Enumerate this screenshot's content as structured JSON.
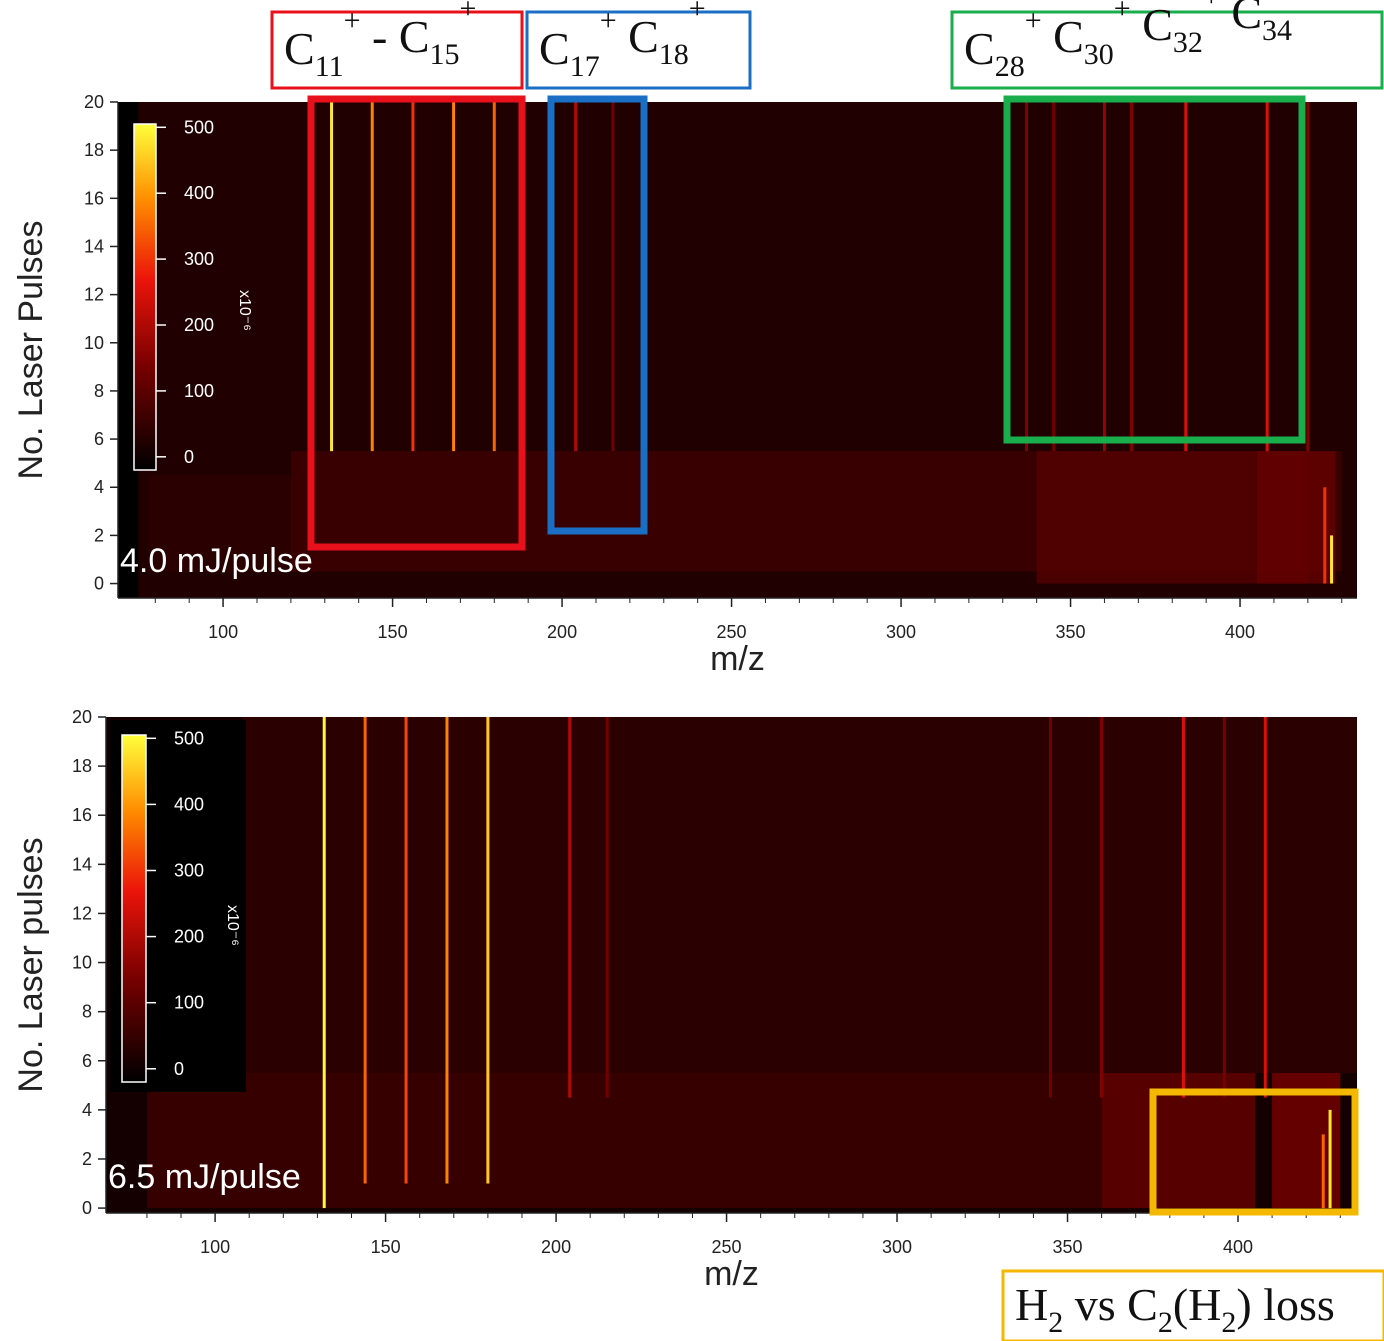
{
  "chart_data": [
    {
      "type": "heatmap",
      "ylabel": "No. Laser Pulses",
      "xlabel": "m/z",
      "annotation_text": "4.0 mJ/pulse",
      "xlim": [
        69,
        434.5
      ],
      "ylim": [
        -0.6,
        20
      ],
      "xticks": [
        100,
        150,
        200,
        250,
        300,
        350,
        400
      ],
      "xminorticks": [
        80,
        90,
        110,
        120,
        130,
        140,
        160,
        170,
        180,
        190,
        210,
        220,
        230,
        240,
        260,
        270,
        280,
        290,
        310,
        320,
        330,
        340,
        360,
        370,
        380,
        390,
        410,
        420,
        430
      ],
      "yticks": [
        0,
        2,
        4,
        6,
        8,
        10,
        12,
        14,
        16,
        18,
        20
      ],
      "colorbar_label": "x10⁻⁶",
      "colorbar_lim": [
        -20,
        505
      ],
      "colorbar_ticks": [
        0,
        100,
        200,
        300,
        400,
        500
      ],
      "regions": {
        "mz_from": [
          75,
          120,
          340,
          405,
          78
        ],
        "mz_to": [
          434.5,
          430,
          420,
          428,
          120
        ],
        "from": [
          -0.6,
          0.5,
          0,
          0,
          0.5
        ],
        "to": [
          20,
          5.5,
          5.5,
          5.5,
          4.5
        ],
        "values": [
          30,
          60,
          90,
          110,
          40
        ]
      },
      "peaks": {
        "mz": [
          132,
          144,
          156,
          168,
          180,
          204,
          215,
          337,
          345,
          360,
          368,
          384,
          408,
          420,
          425,
          427
        ],
        "from": [
          5.5,
          5.5,
          5.5,
          5.5,
          5.5,
          5.5,
          5.5,
          5.5,
          5.5,
          5.5,
          5.5,
          5.5,
          5.5,
          5.5,
          0,
          0
        ],
        "to": [
          20,
          20,
          20,
          20,
          20,
          20,
          20,
          20,
          20,
          20,
          20,
          20,
          20,
          20,
          4,
          2
        ],
        "values": [
          480,
          380,
          300,
          380,
          350,
          200,
          130,
          150,
          130,
          170,
          150,
          250,
          250,
          150,
          300,
          480
        ]
      },
      "annotations": [
        {
          "color": "#e8101a",
          "parts": [
            {
              "text": "C"
            },
            {
              "sub": "11"
            },
            {
              "sup": "+"
            },
            {
              "text": " - C"
            },
            {
              "sub": "15"
            },
            {
              "sup": "+"
            }
          ]
        },
        {
          "color": "#1a6fc4",
          "parts": [
            {
              "text": "C"
            },
            {
              "sub": "17"
            },
            {
              "sup": "+"
            },
            {
              "text": " C"
            },
            {
              "sub": "18"
            },
            {
              "sup": "+"
            }
          ]
        },
        {
          "color": "#1aad4b",
          "parts": [
            {
              "text": "C"
            },
            {
              "sub": "28"
            },
            {
              "sup": "+"
            },
            {
              "text": " C"
            },
            {
              "sub": "30"
            },
            {
              "sup": "+"
            },
            {
              "text": " C"
            },
            {
              "sub": "32"
            },
            {
              "sup": "+"
            },
            {
              "text": " C"
            },
            {
              "sub": "34"
            },
            {
              "sup": "+"
            }
          ]
        }
      ]
    },
    {
      "type": "heatmap",
      "ylabel": "No. Laser pulses",
      "xlabel": "m/z",
      "annotation_text": "6.5 mJ/pulse",
      "xlim": [
        68,
        434.9
      ],
      "ylim": [
        -0.2,
        20
      ],
      "xticks": [
        100,
        150,
        200,
        250,
        300,
        350,
        400
      ],
      "xminorticks": [
        80,
        90,
        110,
        120,
        130,
        140,
        160,
        170,
        180,
        190,
        210,
        220,
        230,
        240,
        260,
        270,
        280,
        290,
        310,
        320,
        330,
        340,
        360,
        370,
        380,
        390,
        410,
        420,
        430
      ],
      "yticks": [
        0,
        2,
        4,
        6,
        8,
        10,
        12,
        14,
        16,
        18,
        20
      ],
      "colorbar_label": "x10⁻⁶",
      "colorbar_lim": [
        -20,
        505
      ],
      "colorbar_ticks": [
        0,
        100,
        200,
        300,
        400,
        500
      ],
      "regions": {
        "mz_from": [
          68,
          108,
          80,
          360,
          410
        ],
        "mz_to": [
          434.9,
          434.9,
          360,
          405,
          430
        ],
        "from": [
          -0.2,
          5.5,
          0,
          0,
          0
        ],
        "to": [
          20,
          20,
          5.5,
          5.5,
          5.5
        ],
        "values": [
          10,
          40,
          60,
          110,
          130
        ]
      },
      "peaks": {
        "mz": [
          132,
          144,
          156,
          168,
          180,
          204,
          215,
          345,
          360,
          384,
          396,
          408,
          425,
          427
        ],
        "from": [
          0,
          1,
          1,
          1,
          1,
          4.5,
          4.5,
          4.5,
          4.5,
          4.5,
          4.5,
          4.5,
          0,
          0
        ],
        "to": [
          20,
          20,
          20,
          20,
          20,
          20,
          20,
          20,
          20,
          20,
          20,
          20,
          3,
          4
        ],
        "values": [
          500,
          350,
          320,
          380,
          450,
          200,
          130,
          130,
          150,
          250,
          140,
          250,
          350,
          480
        ]
      },
      "annotations": [
        {
          "color": "#f5b800",
          "parts": [
            {
              "text": "H"
            },
            {
              "sub": "2"
            },
            {
              "text": " vs C"
            },
            {
              "sub": "2"
            },
            {
              "text": "(H"
            },
            {
              "sub": "2"
            },
            {
              "text": ") loss"
            }
          ]
        }
      ]
    }
  ]
}
